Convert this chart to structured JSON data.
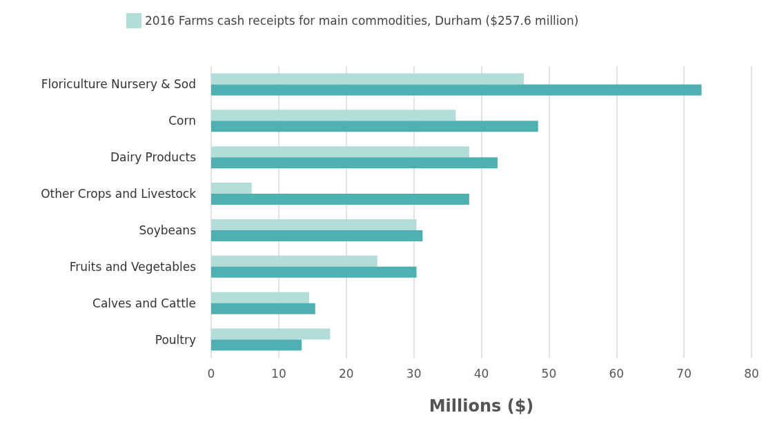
{
  "chart_data": {
    "type": "bar",
    "orientation": "horizontal",
    "xlabel": "Millions ($)",
    "categories": [
      "Floriculture Nursery & Sod",
      "Corn",
      "Dairy Products",
      "Other Crops and Livestock",
      "Soybeans",
      "Fruits and Vegetables",
      "Calves and Cattle",
      "Poultry"
    ],
    "series": [
      {
        "name": "2016 Farms cash receipts for main commodities, Durham ($257.6 million)",
        "color": "#b2ddd8",
        "values": [
          46.3,
          36.2,
          38.2,
          6.0,
          30.4,
          24.6,
          14.5,
          17.6
        ]
      },
      {
        "color": "#4fb0b1",
        "values": [
          72.6,
          48.4,
          42.4,
          38.2,
          31.3,
          30.4,
          15.4,
          13.4
        ]
      }
    ],
    "xlim": [
      0,
      80
    ],
    "xticks": [
      0,
      10,
      20,
      30,
      40,
      50,
      60,
      70,
      80
    ],
    "grid": "x",
    "legend": "top"
  }
}
